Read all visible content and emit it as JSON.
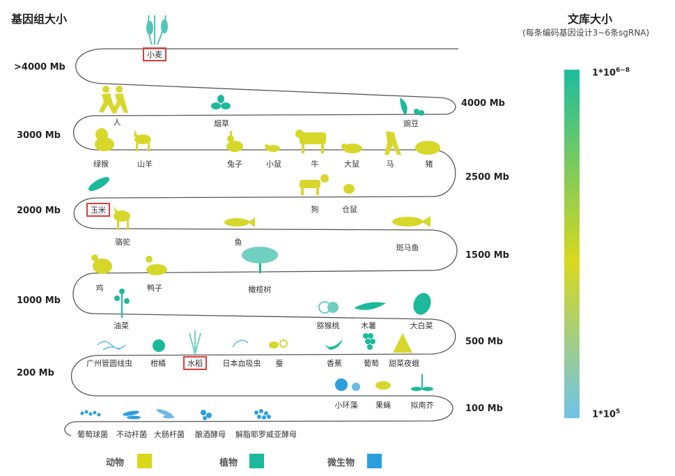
{
  "title_left": "基因组大小",
  "title_right": "文库大小",
  "subtitle_right": "(每条编码基因设计3~6条sgRNA)",
  "sizes": [
    ">4000 Mb",
    "4000 Mb",
    "3000 Mb",
    "2500 Mb",
    "2000 Mb",
    "1500 Mb",
    "1000 Mb",
    "500 Mb",
    "200 Mb",
    "100 Mb"
  ],
  "scale": {
    "top_label": "1*10",
    "top_exp": "6~8",
    "bottom_label": "1*10",
    "bottom_exp": "5",
    "top_color": "#1dbd9e",
    "mid_color": "#d8d81e",
    "bottom_color": "#6ec3e8"
  },
  "organisms": {
    "wheat": "小麦",
    "human": "人",
    "tobacco": "烟草",
    "pea": "豌豆",
    "green_monkey": "绿猴",
    "goat": "山羊",
    "rabbit": "兔子",
    "mouse": "小鼠",
    "cattle": "牛",
    "rat": "大鼠",
    "horse": "马",
    "pig": "猪",
    "dog": "狗",
    "hamster": "仓鼠",
    "maize": "玉米",
    "camel": "骆驼",
    "fish": "鱼",
    "zebrafish": "斑马鱼",
    "chicken": "鸡",
    "duck": "鸭子",
    "olive": "橄榄树",
    "rapeseed": "油菜",
    "kiwi": "猕猴桃",
    "cassava": "木薯",
    "cabbage": "大白菜",
    "brugia": "广州管圆线虫",
    "citrus": "柑橘",
    "rice": "水稻",
    "schistosoma": "日本血吸虫",
    "silkworm": "蚕",
    "banana": "香蕉",
    "grape": "葡萄",
    "beet_armyworm": "甜菜夜蛾",
    "chlorella": "小环藻",
    "fruitfly": "果蝇",
    "arabidopsis": "拟南芥",
    "staph": "葡萄球菌",
    "bacillus": "不动杆菌",
    "ecoli": "大肠杆菌",
    "yeast": "酿酒酵母",
    "yarrowia": "解脂耶罗威亚酵母"
  },
  "legend": [
    {
      "label": "动物",
      "color": "#d9d91a"
    },
    {
      "label": "植物",
      "color": "#1cb99a"
    },
    {
      "label": "微生物",
      "color": "#2b9fdd"
    }
  ]
}
